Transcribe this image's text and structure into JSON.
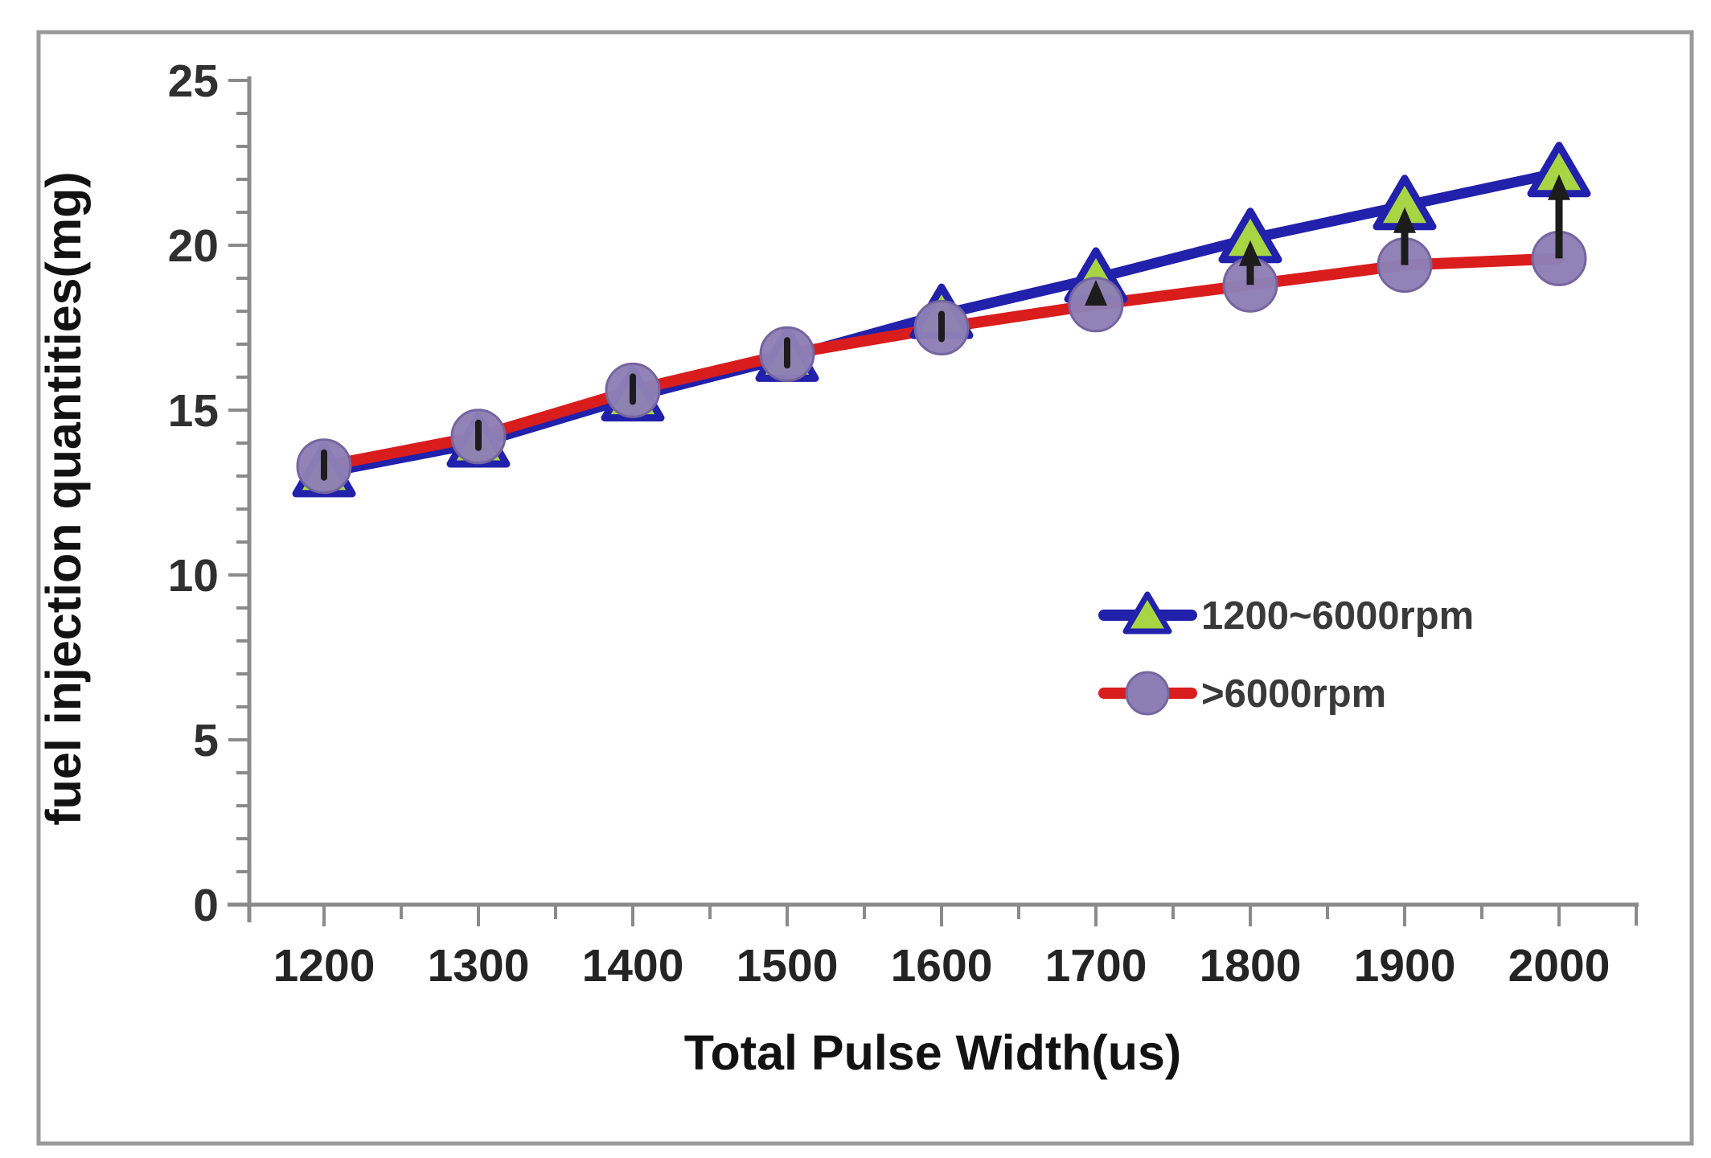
{
  "figure": {
    "border_color": "#9a9a9a",
    "background": "#ffffff"
  },
  "chart_data": {
    "type": "line",
    "title": "",
    "xlabel": "Total Pulse Width(us)",
    "ylabel": "fuel injection quantities(mg)",
    "x": [
      1200,
      1300,
      1400,
      1500,
      1600,
      1700,
      1800,
      1900,
      2000
    ],
    "series": [
      {
        "name": "1200~6000rpm",
        "color": "#2121ab",
        "marker": "triangle-up",
        "marker_fill": "#a8d544",
        "marker_edge": "#2121ab",
        "values": [
          13.1,
          14.0,
          15.4,
          16.6,
          17.9,
          19.0,
          20.2,
          21.2,
          22.2
        ]
      },
      {
        "name": ">6000rpm",
        "color": "#d91d1d",
        "marker": "circle",
        "marker_fill": "#8d7fb5",
        "marker_edge": "#75659f",
        "values": [
          13.3,
          14.2,
          15.6,
          16.7,
          17.5,
          18.2,
          18.8,
          19.4,
          19.6
        ]
      }
    ],
    "gap_arrows": {
      "note": "black vertical arrows drawn from >6000rpm points up to 1200~6000rpm points where the curves diverge",
      "color": "#1c1c1c"
    },
    "xlim": [
      1140,
      2050
    ],
    "ylim": [
      0,
      25
    ],
    "y_major_ticks": [
      0,
      5,
      10,
      15,
      20,
      25
    ],
    "y_minor_step": 1,
    "x_major_step": 100,
    "x_minor_step": 50,
    "grid": false,
    "legend_position": "middle-right",
    "style": {
      "axis_color": "#8a8a8a",
      "tick_color": "#8a8a8a",
      "x_tick_label_color": "#242424",
      "y_tick_label_color": "#303030",
      "axis_title_color": "#121212",
      "legend_text_color": "#3a3a3a"
    }
  }
}
